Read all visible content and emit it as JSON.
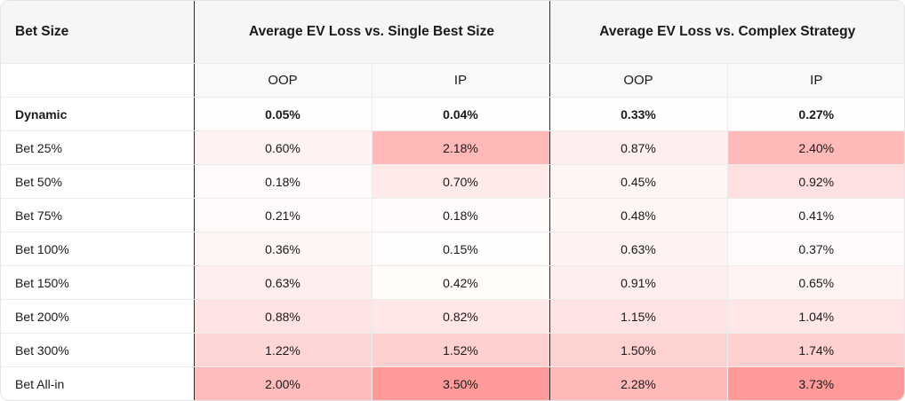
{
  "header": {
    "bet_size": "Bet Size",
    "group1": "Average EV Loss vs. Single Best Size",
    "group2": "Average EV Loss vs. Complex Strategy"
  },
  "subheader": [
    "OOP",
    "IP",
    "OOP",
    "IP"
  ],
  "rows": [
    {
      "label": "Dynamic",
      "bold": true,
      "values": [
        "0.05%",
        "0.04%",
        "0.33%",
        "0.27%"
      ],
      "colors": [
        "#fffcfc",
        "#fffcfc",
        "#fffcfc",
        "#fffcfc"
      ]
    },
    {
      "label": "Bet 25%",
      "bold": false,
      "values": [
        "0.60%",
        "2.18%",
        "0.87%",
        "2.40%"
      ],
      "colors": [
        "#fff2f2",
        "#ffb8b8",
        "#ffeeee",
        "#ffb9b9"
      ]
    },
    {
      "label": "Bet 50%",
      "bold": false,
      "values": [
        "0.18%",
        "0.70%",
        "0.45%",
        "0.92%"
      ],
      "colors": [
        "#fffafa",
        "#ffeaea",
        "#fff5f5",
        "#ffe0e0"
      ]
    },
    {
      "label": "Bet 75%",
      "bold": false,
      "values": [
        "0.21%",
        "0.18%",
        "0.48%",
        "0.41%"
      ],
      "colors": [
        "#fffafa",
        "#fffafa",
        "#fff5f5",
        "#fffafa"
      ]
    },
    {
      "label": "Bet 100%",
      "bold": false,
      "values": [
        "0.36%",
        "0.15%",
        "0.63%",
        "0.37%"
      ],
      "colors": [
        "#fff5f5",
        "#fffcfc",
        "#fff2f2",
        "#fffafa"
      ]
    },
    {
      "label": "Bet 150%",
      "bold": false,
      "values": [
        "0.63%",
        "0.42%",
        "0.91%",
        "0.65%"
      ],
      "colors": [
        "#ffeeee",
        "#fffcfa",
        "#ffeeee",
        "#fff3f3"
      ]
    },
    {
      "label": "Bet 200%",
      "bold": false,
      "values": [
        "0.88%",
        "0.82%",
        "1.15%",
        "1.04%"
      ],
      "colors": [
        "#ffe3e3",
        "#ffe7e7",
        "#ffe3e3",
        "#ffe7e7"
      ]
    },
    {
      "label": "Bet 300%",
      "bold": false,
      "values": [
        "1.22%",
        "1.52%",
        "1.50%",
        "1.74%"
      ],
      "colors": [
        "#ffd6d6",
        "#ffd0d0",
        "#ffd2d2",
        "#ffd0d0"
      ]
    },
    {
      "label": "Bet All-in",
      "bold": false,
      "values": [
        "2.00%",
        "3.50%",
        "2.28%",
        "3.73%"
      ],
      "colors": [
        "#ffbcbc",
        "#ff9a9a",
        "#ffb9b9",
        "#ff9a9a"
      ]
    }
  ]
}
